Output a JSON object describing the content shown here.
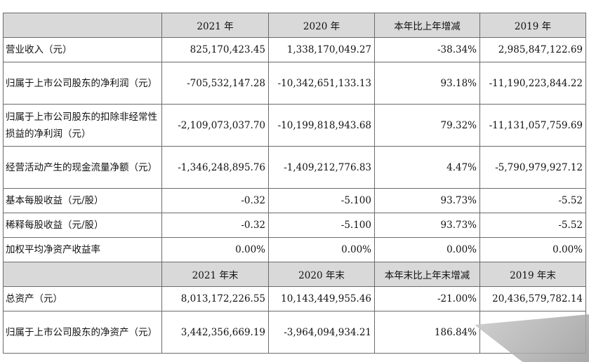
{
  "header1": [
    "2021 年",
    "2020 年",
    "本年比上年增减",
    "2019 年"
  ],
  "rows1": [
    {
      "label": "营业收入（元）",
      "values": [
        "825,170,423.45",
        "1,338,170,049.27",
        "-38.34%",
        "2,985,847,122.69"
      ]
    },
    {
      "label": "归属于上市公司股东的净利润（元）",
      "values": [
        "-705,532,147.28",
        "-10,342,651,133.13",
        "93.18%",
        "-11,190,223,844.22"
      ]
    },
    {
      "label": "归属于上市公司股东的扣除非经常性损益的净利润（元）",
      "values": [
        "-2,109,073,037.70",
        "-10,199,818,943.68",
        "79.32%",
        "-11,131,057,759.69"
      ]
    },
    {
      "label": "经营活动产生的现金流量净额（元）",
      "values": [
        "-1,346,248,895.76",
        "-1,409,212,776.83",
        "4.47%",
        "-5,790,979,927.12"
      ]
    },
    {
      "label": "基本每股收益（元/股）",
      "values": [
        "-0.32",
        "-5.100",
        "93.73%",
        "-5.52"
      ]
    },
    {
      "label": "稀释每股收益（元/股）",
      "values": [
        "-0.32",
        "-5.100",
        "93.73%",
        "-5.52"
      ]
    },
    {
      "label": "加权平均净资产收益率",
      "values": [
        "0.00%",
        "0.00%",
        "0.00%",
        "0.00%"
      ]
    }
  ],
  "header2": [
    "2021 年末",
    "2020 年末",
    "本年末比上年末增减",
    "2019 年末"
  ],
  "rows2": [
    {
      "label": "总资产（元）",
      "values": [
        "8,013,172,226.55",
        "10,143,449,955.46",
        "-21.00%",
        "20,436,579,782.14"
      ]
    },
    {
      "label": "归属于上市公司股东的净资产（元）",
      "values": [
        "3,442,356,669.19",
        "-3,964,094,934.21",
        "186.84%",
        ""
      ]
    }
  ]
}
